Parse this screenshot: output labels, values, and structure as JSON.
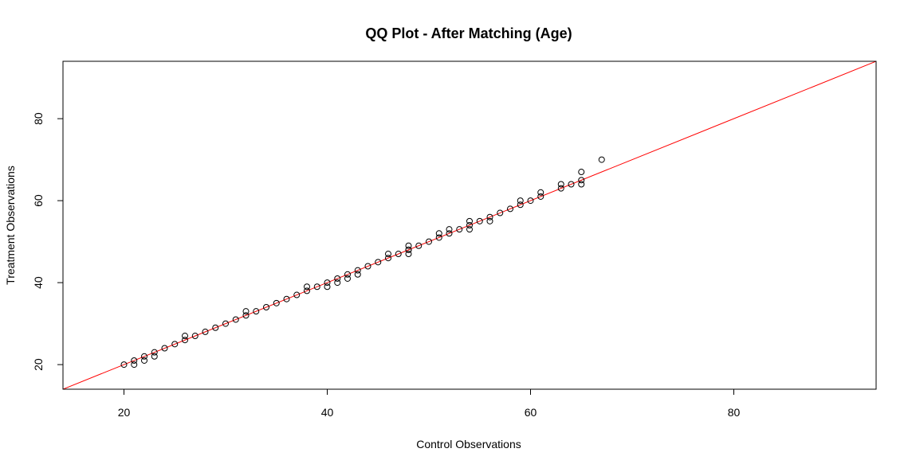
{
  "chart_data": {
    "type": "scatter",
    "title": "QQ Plot - After Matching (Age)",
    "xlabel": "Control Observations",
    "ylabel": "Treatment Observations",
    "xlim": [
      14,
      94
    ],
    "ylim": [
      14,
      94
    ],
    "x_ticks": [
      20,
      40,
      60,
      80
    ],
    "y_ticks": [
      20,
      40,
      60,
      80
    ],
    "x_tick_labels": [
      "20",
      "40",
      "60",
      "80"
    ],
    "y_tick_labels": [
      "20",
      "40",
      "60",
      "80"
    ],
    "grid": false,
    "legend": "none",
    "colors": {
      "points": "#000000",
      "reference_line": "#ff0000",
      "frame": "#000000",
      "background": "#ffffff"
    },
    "reference_line": {
      "intercept": 0,
      "slope": 1
    },
    "series": [
      {
        "x": [
          20,
          21,
          21,
          22,
          22,
          23,
          23,
          24,
          25,
          26,
          26,
          27,
          28,
          29,
          30,
          31,
          32,
          32,
          33,
          34,
          35,
          36,
          37,
          38,
          38,
          39,
          40,
          40,
          41,
          41,
          42,
          42,
          43,
          43,
          44,
          45,
          46,
          46,
          47,
          48,
          48,
          48,
          48,
          49,
          50,
          51,
          51,
          52,
          52,
          53,
          54,
          54,
          54,
          55,
          56,
          56,
          57,
          58,
          59,
          59,
          60,
          61,
          61,
          63,
          63,
          64,
          65,
          65,
          65,
          67
        ],
        "y": [
          20,
          20,
          21,
          21,
          22,
          22,
          23,
          24,
          25,
          26,
          27,
          27,
          28,
          29,
          30,
          31,
          32,
          33,
          33,
          34,
          35,
          36,
          37,
          38,
          39,
          39,
          39,
          40,
          40,
          41,
          41,
          42,
          42,
          43,
          44,
          45,
          46,
          47,
          47,
          47,
          48,
          48,
          49,
          49,
          50,
          51,
          52,
          52,
          53,
          53,
          53,
          54,
          55,
          55,
          55,
          56,
          57,
          58,
          59,
          60,
          60,
          61,
          62,
          63,
          64,
          64,
          64,
          65,
          67,
          70
        ]
      }
    ]
  }
}
